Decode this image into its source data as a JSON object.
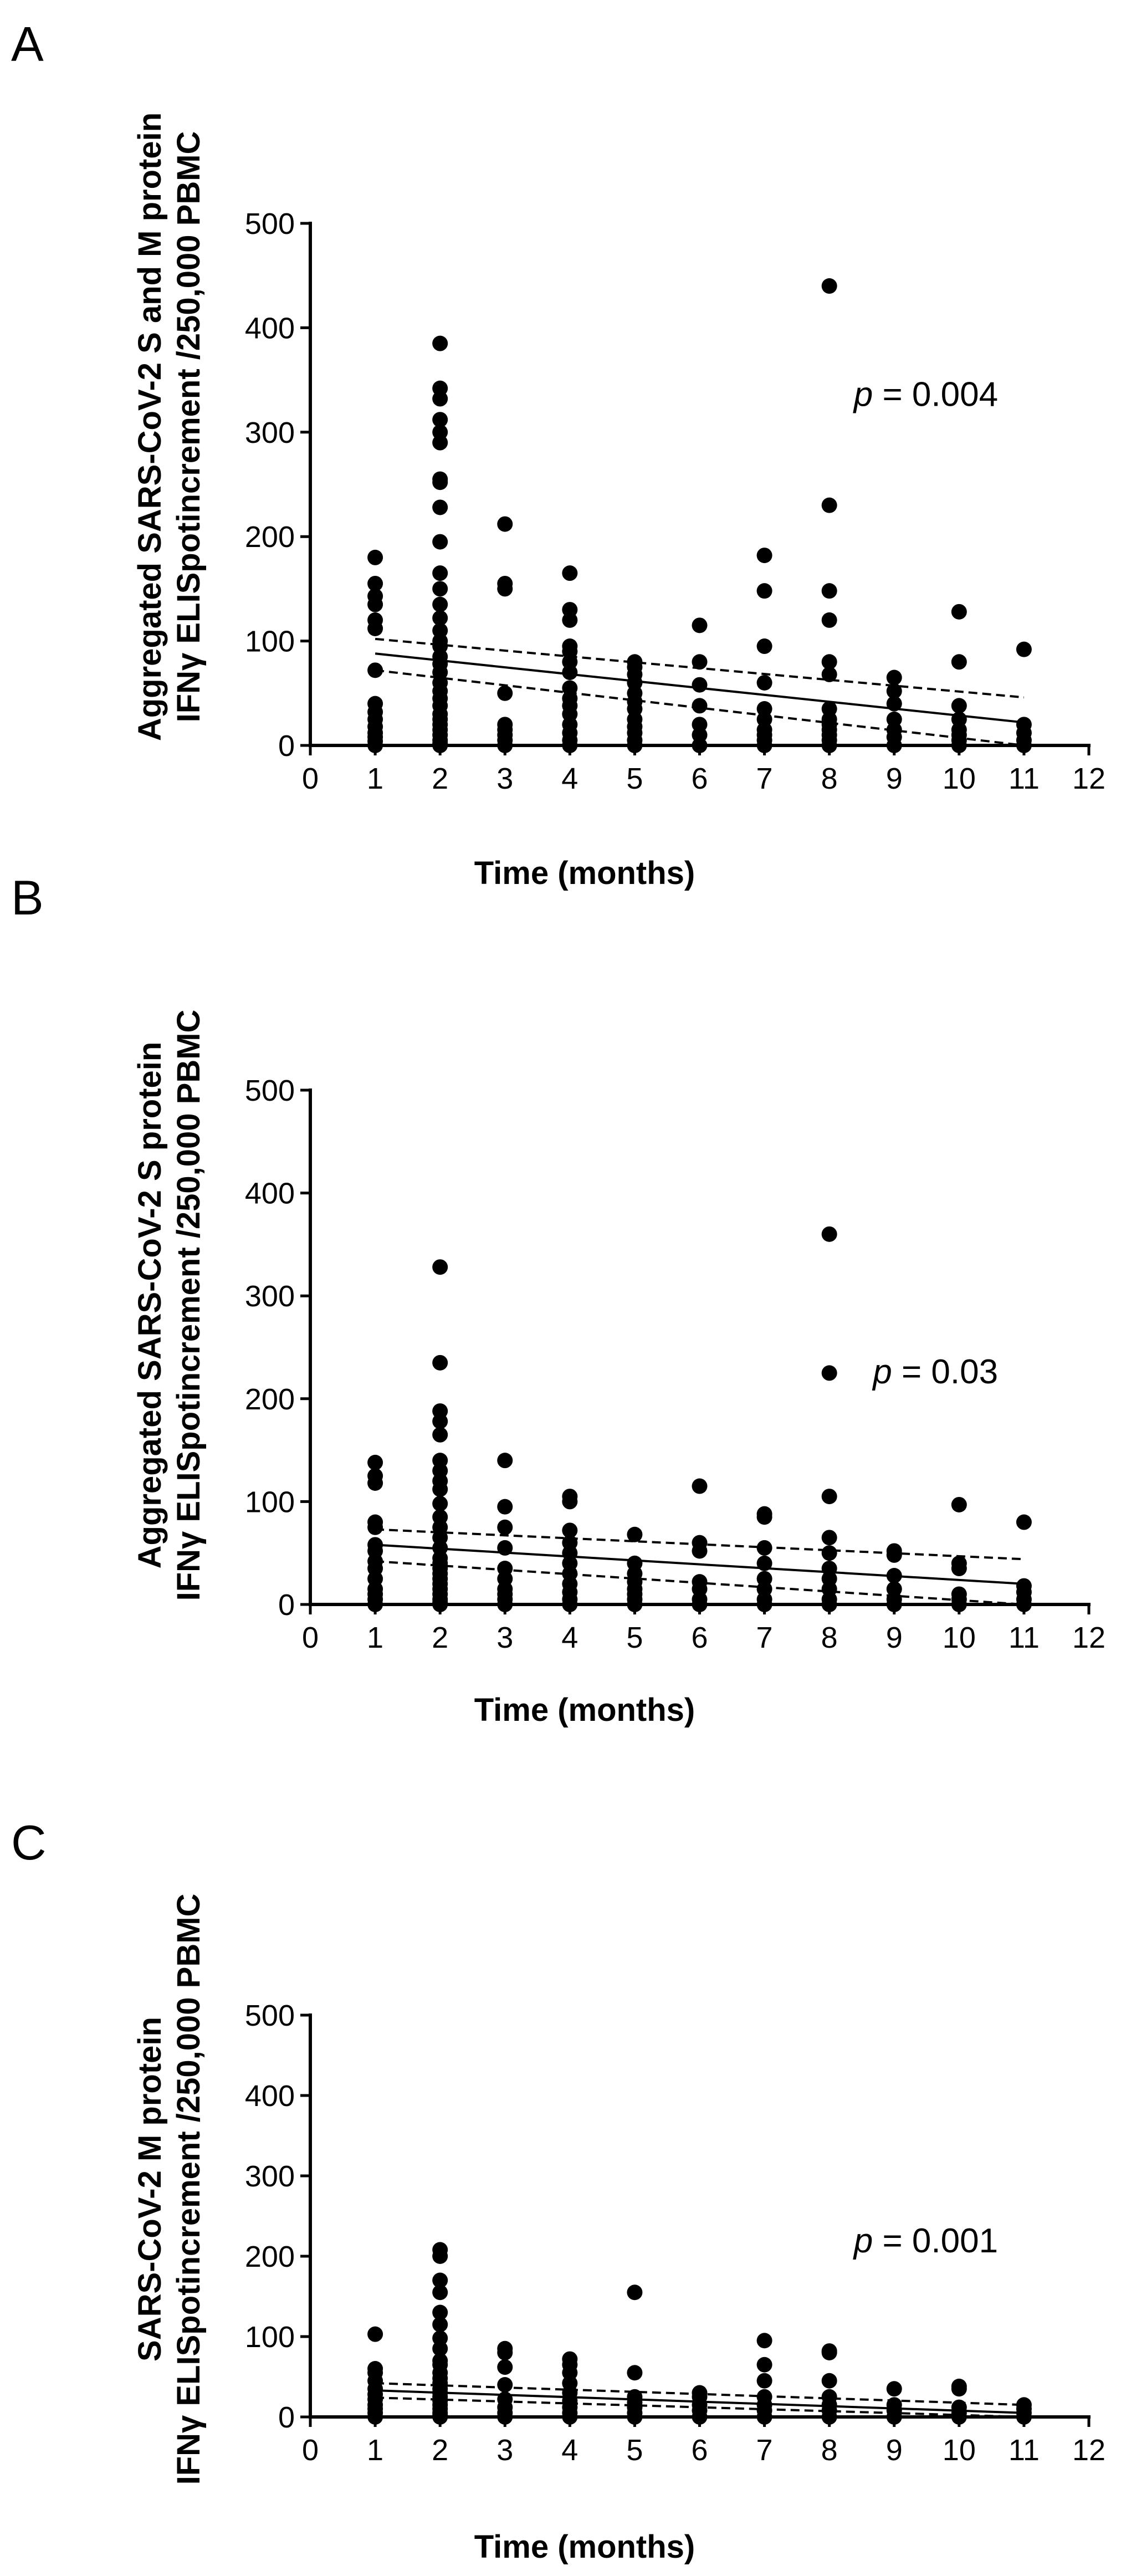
{
  "chart_data": [
    {
      "type": "scatter",
      "panel": "A",
      "ylabel_line1": "Aggregated SARS-CoV-2 S and M protein",
      "ylabel_line2": "IFNγ ELISpotincrement /250,000 PBMC",
      "xlabel": "Time (months)",
      "xlim": [
        0,
        12
      ],
      "ylim": [
        0,
        500
      ],
      "xticks": [
        "0",
        "1",
        "2",
        "3",
        "4",
        "5",
        "6",
        "7",
        "8",
        "9",
        "10",
        "11",
        "12"
      ],
      "yticks": [
        "0",
        "100",
        "200",
        "300",
        "400",
        "500"
      ],
      "p_prefix": "p",
      "p_text": " = 0.004",
      "p_pos": [
        10.6,
        325
      ],
      "fit": {
        "x0": 1,
        "y0": 88,
        "x1": 11,
        "y1": 22
      },
      "ci_upper": {
        "x0": 1,
        "y0": 102,
        "x1": 11,
        "y1": 46
      },
      "ci_lower": {
        "x0": 1,
        "y0": 72,
        "x1": 11,
        "y1": 0
      },
      "points": {
        "1": [
          180,
          155,
          143,
          135,
          120,
          112,
          72,
          40,
          32,
          25,
          18,
          12,
          8,
          4,
          0
        ],
        "2": [
          385,
          342,
          332,
          312,
          300,
          290,
          255,
          252,
          228,
          195,
          165,
          150,
          135,
          122,
          110,
          100,
          95,
          85,
          78,
          70,
          60,
          52,
          45,
          38,
          30,
          25,
          20,
          15,
          10,
          5,
          2,
          0
        ],
        "3": [
          212,
          155,
          150,
          50,
          20,
          15,
          10,
          5,
          0
        ],
        "4": [
          165,
          130,
          120,
          95,
          90,
          80,
          70,
          55,
          45,
          38,
          30,
          20,
          12,
          5,
          0
        ],
        "5": [
          80,
          75,
          68,
          60,
          50,
          42,
          35,
          25,
          18,
          12,
          5,
          0
        ],
        "6": [
          115,
          80,
          58,
          38,
          20,
          10,
          0
        ],
        "7": [
          182,
          148,
          95,
          60,
          35,
          25,
          15,
          10,
          5,
          0
        ],
        "8": [
          440,
          230,
          148,
          120,
          80,
          68,
          35,
          25,
          20,
          15,
          10,
          5,
          0
        ],
        "9": [
          65,
          52,
          40,
          25,
          15,
          8,
          0
        ],
        "10": [
          128,
          80,
          38,
          25,
          15,
          10,
          5,
          0
        ],
        "11": [
          92,
          20,
          12,
          5,
          0
        ]
      }
    },
    {
      "type": "scatter",
      "panel": "B",
      "ylabel_line1": "Aggregated SARS-CoV-2 S protein",
      "ylabel_line2": "IFNγ ELISpotincrement /250,000 PBMC",
      "xlabel": "Time (months)",
      "xlim": [
        0,
        12
      ],
      "ylim": [
        0,
        500
      ],
      "xticks": [
        "0",
        "1",
        "2",
        "3",
        "4",
        "5",
        "6",
        "7",
        "8",
        "9",
        "10",
        "11",
        "12"
      ],
      "yticks": [
        "0",
        "100",
        "200",
        "300",
        "400",
        "500"
      ],
      "p_prefix": "p",
      "p_text": " = 0.03",
      "p_pos": [
        10.6,
        215
      ],
      "fit": {
        "x0": 1,
        "y0": 58,
        "x1": 11,
        "y1": 20
      },
      "ci_upper": {
        "x0": 1,
        "y0": 73,
        "x1": 11,
        "y1": 44
      },
      "ci_lower": {
        "x0": 1,
        "y0": 42,
        "x1": 11,
        "y1": 0
      },
      "points": {
        "1": [
          138,
          125,
          118,
          80,
          75,
          58,
          52,
          42,
          35,
          25,
          15,
          10,
          5,
          0
        ],
        "2": [
          328,
          235,
          188,
          178,
          165,
          140,
          130,
          120,
          112,
          98,
          85,
          75,
          65,
          55,
          45,
          40,
          35,
          30,
          25,
          20,
          15,
          10,
          5,
          2,
          0
        ],
        "3": [
          140,
          95,
          75,
          55,
          35,
          25,
          15,
          10,
          5,
          0
        ],
        "4": [
          105,
          100,
          72,
          60,
          50,
          40,
          30,
          20,
          12,
          5,
          0
        ],
        "5": [
          68,
          40,
          30,
          22,
          15,
          10,
          5,
          0
        ],
        "6": [
          115,
          60,
          52,
          22,
          15,
          5,
          0
        ],
        "7": [
          88,
          85,
          55,
          40,
          25,
          15,
          5,
          0
        ],
        "8": [
          360,
          225,
          105,
          65,
          50,
          35,
          25,
          15,
          5,
          0
        ],
        "9": [
          52,
          48,
          28,
          15,
          5,
          0
        ],
        "10": [
          97,
          40,
          35,
          10,
          5,
          0
        ],
        "11": [
          80,
          18,
          12,
          5,
          0
        ]
      }
    },
    {
      "type": "scatter",
      "panel": "C",
      "ylabel_line1": "SARS-CoV-2 M protein",
      "ylabel_line2": "IFNγ ELISpotincrement /250,000 PBMC",
      "xlabel": "Time (months)",
      "xlim": [
        0,
        12
      ],
      "ylim": [
        0,
        500
      ],
      "xticks": [
        "0",
        "1",
        "2",
        "3",
        "4",
        "5",
        "6",
        "7",
        "8",
        "9",
        "10",
        "11",
        "12"
      ],
      "yticks": [
        "0",
        "100",
        "200",
        "300",
        "400",
        "500"
      ],
      "p_prefix": "p",
      "p_text": " = 0.001",
      "p_pos": [
        10.6,
        205
      ],
      "fit": {
        "x0": 1,
        "y0": 33,
        "x1": 11,
        "y1": 5
      },
      "ci_upper": {
        "x0": 1,
        "y0": 42,
        "x1": 11,
        "y1": 15
      },
      "ci_lower": {
        "x0": 1,
        "y0": 24,
        "x1": 11,
        "y1": 0
      },
      "points": {
        "1": [
          103,
          60,
          55,
          45,
          35,
          28,
          22,
          15,
          10,
          5,
          0
        ],
        "2": [
          208,
          200,
          170,
          155,
          130,
          115,
          98,
          85,
          70,
          65,
          55,
          48,
          42,
          35,
          30,
          25,
          20,
          15,
          10,
          5,
          2,
          0
        ],
        "3": [
          85,
          80,
          62,
          40,
          22,
          12,
          5,
          0
        ],
        "4": [
          72,
          65,
          55,
          42,
          30,
          20,
          12,
          5,
          0
        ],
        "5": [
          155,
          55,
          25,
          18,
          12,
          5,
          0
        ],
        "6": [
          30,
          25,
          15,
          8,
          0
        ],
        "7": [
          95,
          65,
          45,
          25,
          15,
          8,
          0
        ],
        "8": [
          82,
          80,
          45,
          25,
          15,
          8,
          0
        ],
        "9": [
          35,
          15,
          8,
          0
        ],
        "10": [
          38,
          35,
          12,
          5,
          0
        ],
        "11": [
          15,
          10,
          5,
          0
        ]
      }
    }
  ]
}
